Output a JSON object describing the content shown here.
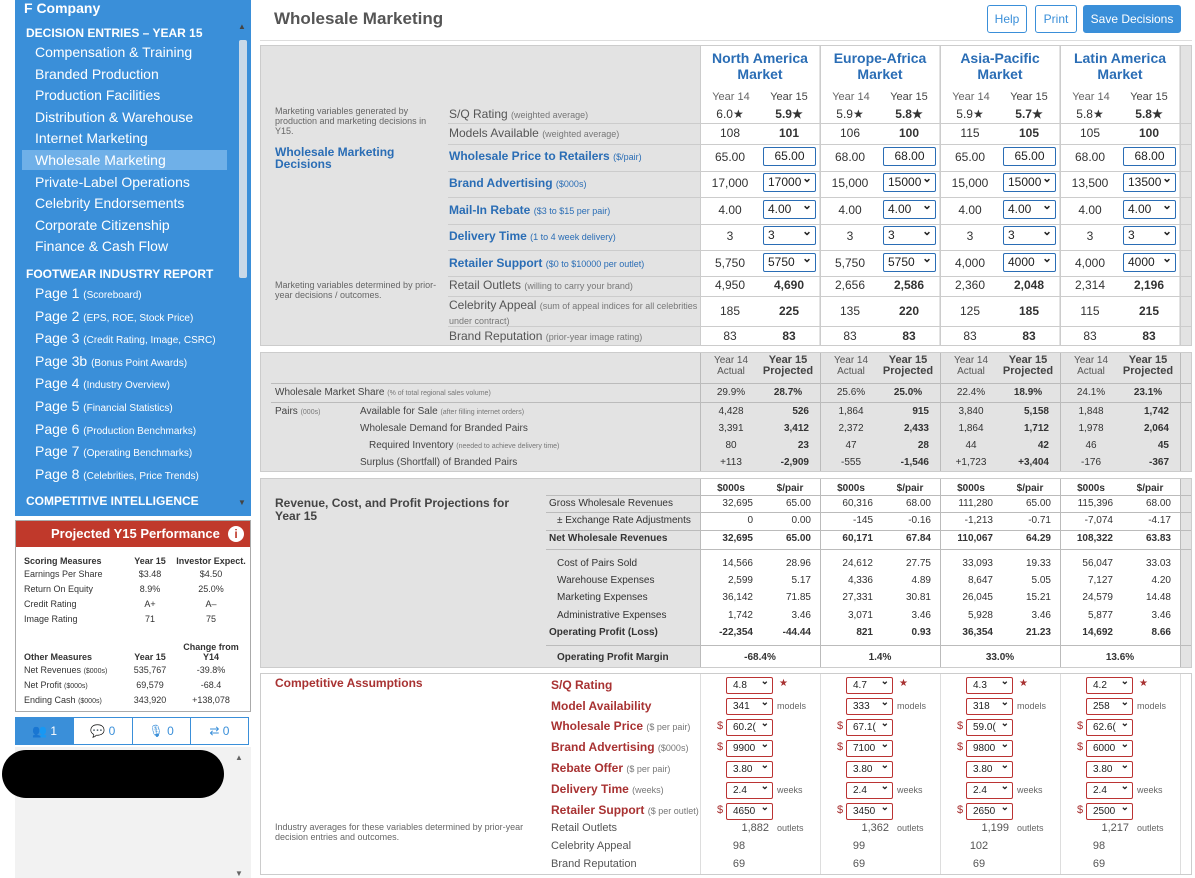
{
  "company": "F Company",
  "nav": {
    "section1": "DECISION ENTRIES – YEAR 15",
    "items": [
      "Compensation & Training",
      "Branded Production",
      "Production Facilities",
      "Distribution & Warehouse",
      "Internet Marketing",
      "Wholesale Marketing",
      "Private-Label Operations",
      "Celebrity Endorsements",
      "Corporate Citizenship",
      "Finance & Cash Flow"
    ],
    "section2": "FOOTWEAR INDUSTRY REPORT",
    "pages": [
      {
        "label": "Page 1",
        "note": "(Scoreboard)"
      },
      {
        "label": "Page 2",
        "note": "(EPS, ROE, Stock Price)"
      },
      {
        "label": "Page 3",
        "note": "(Credit Rating, Image, CSRC)"
      },
      {
        "label": "Page 3b",
        "note": "(Bonus Point Awards)"
      },
      {
        "label": "Page 4",
        "note": "(Industry Overview)"
      },
      {
        "label": "Page 5",
        "note": "(Financial Statistics)"
      },
      {
        "label": "Page 6",
        "note": "(Production Benchmarks)"
      },
      {
        "label": "Page 7",
        "note": "(Operating Benchmarks)"
      },
      {
        "label": "Page 8",
        "note": "(Celebrities, Price Trends)"
      }
    ],
    "section3": "COMPETITIVE INTELLIGENCE"
  },
  "perf": {
    "title": "Projected Y15 Performance",
    "info": "i",
    "h1": [
      "Scoring Measures",
      "Year 15",
      "Investor Expect."
    ],
    "rows1": [
      [
        "Earnings Per Share",
        "$3.48",
        "$4.50"
      ],
      [
        "Return On Equity",
        "8.9%",
        "25.0%"
      ],
      [
        "Credit Rating",
        "A+",
        "A–"
      ],
      [
        "Image Rating",
        "71",
        "75"
      ]
    ],
    "h2": [
      "Other Measures",
      "Year 15",
      "Change from Y14"
    ],
    "rows2": [
      [
        "Net Revenues",
        "($000s)",
        "535,767",
        "-39.8%"
      ],
      [
        "Net Profit",
        "($000s)",
        "69,579",
        "-68.4"
      ],
      [
        "Ending Cash",
        "($000s)",
        "343,920",
        "+138,078"
      ]
    ]
  },
  "tabs": [
    "1",
    "0",
    "0",
    "0"
  ],
  "header": {
    "title": "Wholesale Marketing",
    "help": "Help",
    "print": "Print",
    "save": "Save Decisions"
  },
  "markets": [
    {
      "l1": "North America",
      "l2": "Market"
    },
    {
      "l1": "Europe-Africa",
      "l2": "Market"
    },
    {
      "l1": "Asia-Pacific",
      "l2": "Market"
    },
    {
      "l1": "Latin America",
      "l2": "Market"
    }
  ],
  "years": {
    "y14": "Year 14",
    "y15": "Year 15"
  },
  "p1": {
    "note1": "Marketing variables generated by production and marketing decisions in Y15.",
    "decisions": "Wholesale Marketing Decisions",
    "note2": "Marketing variables determined by prior-year decisions / outcomes.",
    "labels": [
      {
        "t": "S/Q Rating",
        "s": "(weighted average)"
      },
      {
        "t": "Models Available",
        "s": "(weighted average)"
      },
      {
        "t": "Wholesale Price to Retailers",
        "s": "($/pair)"
      },
      {
        "t": "Brand Advertising",
        "s": "($000s)"
      },
      {
        "t": "Mail-In Rebate",
        "s": "($3 to $15 per pair)"
      },
      {
        "t": "Delivery Time",
        "s": "(1 to 4 week delivery)"
      },
      {
        "t": "Retailer Support",
        "s": "($0 to $10000 per outlet)"
      },
      {
        "t": "Retail Outlets",
        "s": "(willing to carry your brand)"
      },
      {
        "t": "Celebrity Appeal",
        "s": "(sum of appeal indices for all celebrities under contract)"
      },
      {
        "t": "Brand Reputation",
        "s": "(prior-year image rating)"
      }
    ],
    "m": [
      {
        "sq": [
          "6.0★",
          "5.9★"
        ],
        "mod": [
          "108",
          "101"
        ],
        "price": [
          "65.00",
          "65.00"
        ],
        "adv": [
          "17,000",
          "17000"
        ],
        "reb": [
          "4.00",
          "4.00"
        ],
        "del": [
          "3",
          "3"
        ],
        "sup": [
          "5,750",
          "5750"
        ],
        "out": [
          "4,950",
          "4,690"
        ],
        "cel": [
          "185",
          "225"
        ],
        "rep": [
          "83",
          "83"
        ]
      },
      {
        "sq": [
          "5.9★",
          "5.8★"
        ],
        "mod": [
          "106",
          "100"
        ],
        "price": [
          "68.00",
          "68.00"
        ],
        "adv": [
          "15,000",
          "15000"
        ],
        "reb": [
          "4.00",
          "4.00"
        ],
        "del": [
          "3",
          "3"
        ],
        "sup": [
          "5,750",
          "5750"
        ],
        "out": [
          "2,656",
          "2,586"
        ],
        "cel": [
          "135",
          "220"
        ],
        "rep": [
          "83",
          "83"
        ]
      },
      {
        "sq": [
          "5.9★",
          "5.7★"
        ],
        "mod": [
          "115",
          "105"
        ],
        "price": [
          "65.00",
          "65.00"
        ],
        "adv": [
          "15,000",
          "15000"
        ],
        "reb": [
          "4.00",
          "4.00"
        ],
        "del": [
          "3",
          "3"
        ],
        "sup": [
          "4,000",
          "4000"
        ],
        "out": [
          "2,360",
          "2,048"
        ],
        "cel": [
          "125",
          "185"
        ],
        "rep": [
          "83",
          "83"
        ]
      },
      {
        "sq": [
          "5.8★",
          "5.8★"
        ],
        "mod": [
          "105",
          "100"
        ],
        "price": [
          "68.00",
          "68.00"
        ],
        "adv": [
          "13,500",
          "13500"
        ],
        "reb": [
          "4.00",
          "4.00"
        ],
        "del": [
          "3",
          "3"
        ],
        "sup": [
          "4,000",
          "4000"
        ],
        "out": [
          "2,314",
          "2,196"
        ],
        "cel": [
          "115",
          "215"
        ],
        "rep": [
          "83",
          "83"
        ]
      }
    ]
  },
  "p2": {
    "h": {
      "a": "Year 14",
      "b": "Actual",
      "c": "Year 15",
      "d": "Projected"
    },
    "share": {
      "t": "Wholesale Market Share",
      "s": "(% of total regional sales volume)"
    },
    "pairs": {
      "t": "Pairs",
      "s": "(000s)"
    },
    "labels": [
      {
        "t": "Available for Sale",
        "s": "(after filling internet orders)"
      },
      {
        "t": "Wholesale Demand for Branded Pairs",
        "s": ""
      },
      {
        "t": "Required Inventory",
        "s": "(needed to achieve delivery time)"
      },
      {
        "t": "Surplus (Shortfall) of Branded Pairs",
        "s": ""
      }
    ],
    "m": [
      {
        "share": [
          "29.9%",
          "28.7%"
        ],
        "rows": [
          [
            "4,428",
            "526"
          ],
          [
            "3,391",
            "3,412"
          ],
          [
            "80",
            "23"
          ],
          [
            "+113",
            "-2,909"
          ]
        ]
      },
      {
        "share": [
          "25.6%",
          "25.0%"
        ],
        "rows": [
          [
            "1,864",
            "915"
          ],
          [
            "2,372",
            "2,433"
          ],
          [
            "47",
            "28"
          ],
          [
            "-555",
            "-1,546"
          ]
        ]
      },
      {
        "share": [
          "22.4%",
          "18.9%"
        ],
        "rows": [
          [
            "3,840",
            "5,158"
          ],
          [
            "1,864",
            "1,712"
          ],
          [
            "44",
            "42"
          ],
          [
            "+1,723",
            "+3,404"
          ]
        ]
      },
      {
        "share": [
          "24.1%",
          "23.1%"
        ],
        "rows": [
          [
            "1,848",
            "1,742"
          ],
          [
            "1,978",
            "2,064"
          ],
          [
            "46",
            "45"
          ],
          [
            "-176",
            "-367"
          ]
        ]
      }
    ]
  },
  "p3": {
    "title": "Revenue, Cost, and Profit Projections for Year 15",
    "h": [
      "$000s",
      "$/pair"
    ],
    "labels": [
      "Gross Wholesale Revenues",
      "± Exchange Rate Adjustments",
      "Net Wholesale Revenues",
      "Cost of Pairs Sold",
      "Warehouse Expenses",
      "Marketing Expenses",
      "Administrative Expenses",
      "Operating Profit (Loss)",
      "Operating Profit Margin"
    ],
    "m": [
      {
        "rows": [
          [
            "32,695",
            "65.00"
          ],
          [
            "0",
            "0.00"
          ],
          [
            "32,695",
            "65.00"
          ],
          [
            "14,566",
            "28.96"
          ],
          [
            "2,599",
            "5.17"
          ],
          [
            "36,142",
            "71.85"
          ],
          [
            "1,742",
            "3.46"
          ],
          [
            "-22,354",
            "-44.44"
          ]
        ],
        "margin": "-68.4%"
      },
      {
        "rows": [
          [
            "60,316",
            "68.00"
          ],
          [
            "-145",
            "-0.16"
          ],
          [
            "60,171",
            "67.84"
          ],
          [
            "24,612",
            "27.75"
          ],
          [
            "4,336",
            "4.89"
          ],
          [
            "27,331",
            "30.81"
          ],
          [
            "3,071",
            "3.46"
          ],
          [
            "821",
            "0.93"
          ]
        ],
        "margin": "1.4%"
      },
      {
        "rows": [
          [
            "111,280",
            "65.00"
          ],
          [
            "-1,213",
            "-0.71"
          ],
          [
            "110,067",
            "64.29"
          ],
          [
            "33,093",
            "19.33"
          ],
          [
            "8,647",
            "5.05"
          ],
          [
            "26,045",
            "15.21"
          ],
          [
            "5,928",
            "3.46"
          ],
          [
            "36,354",
            "21.23"
          ]
        ],
        "margin": "33.0%"
      },
      {
        "rows": [
          [
            "115,396",
            "68.00"
          ],
          [
            "-7,074",
            "-4.17"
          ],
          [
            "108,322",
            "63.83"
          ],
          [
            "56,047",
            "33.03"
          ],
          [
            "7,127",
            "4.20"
          ],
          [
            "24,579",
            "14.48"
          ],
          [
            "5,877",
            "3.46"
          ],
          [
            "14,692",
            "8.66"
          ]
        ],
        "margin": "13.6%"
      }
    ]
  },
  "p4": {
    "title": "Competitive Assumptions",
    "note": "Industry averages for these variables determined by prior-year decision entries and outcomes.",
    "labels": [
      {
        "t": "S/Q Rating",
        "s": ""
      },
      {
        "t": "Model Availability",
        "s": ""
      },
      {
        "t": "Wholesale Price",
        "s": "($ per pair)"
      },
      {
        "t": "Brand Advertising",
        "s": "($000s)"
      },
      {
        "t": "Rebate Offer",
        "s": "($ per pair)"
      },
      {
        "t": "Delivery Time",
        "s": "(weeks)"
      },
      {
        "t": "Retailer Support",
        "s": "($ per outlet)"
      },
      {
        "t": "Retail Outlets",
        "s": ""
      },
      {
        "t": "Celebrity Appeal",
        "s": ""
      },
      {
        "t": "Brand Reputation",
        "s": ""
      }
    ],
    "units": {
      "star": "★",
      "models": "models",
      "weeks": "weeks",
      "outlets": "outlets",
      "dollar": "$"
    },
    "m": [
      {
        "sq": "4.8",
        "mod": "341",
        "price": "60.2(",
        "adv": "9900",
        "reb": "3.80",
        "del": "2.4",
        "sup": "4650",
        "out": "1,882",
        "cel": "98",
        "rep": "69"
      },
      {
        "sq": "4.7",
        "mod": "333",
        "price": "67.1(",
        "adv": "7100",
        "reb": "3.80",
        "del": "2.4",
        "sup": "3450",
        "out": "1,362",
        "cel": "99",
        "rep": "69"
      },
      {
        "sq": "4.3",
        "mod": "318",
        "price": "59.0(",
        "adv": "9800",
        "reb": "3.80",
        "del": "2.4",
        "sup": "2650",
        "out": "1,199",
        "cel": "102",
        "rep": "69"
      },
      {
        "sq": "4.2",
        "mod": "258",
        "price": "62.6(",
        "adv": "6000",
        "reb": "3.80",
        "del": "2.4",
        "sup": "2500",
        "out": "1,217",
        "cel": "98",
        "rep": "69"
      }
    ]
  }
}
